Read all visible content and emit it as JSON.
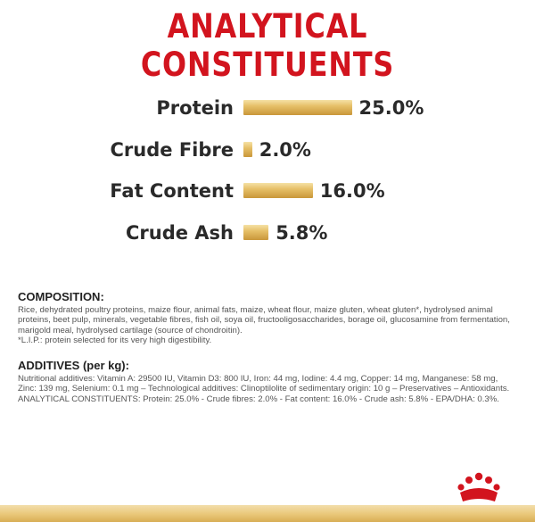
{
  "title": "ANALYTICAL CONSTITUENTS",
  "chart_data": {
    "type": "bar",
    "title": "ANALYTICAL CONSTITUENTS",
    "categories": [
      "Protein",
      "Crude Fibre",
      "Fat Content",
      "Crude Ash"
    ],
    "values": [
      25.0,
      2.0,
      16.0,
      5.8
    ],
    "value_labels": [
      "25.0%",
      "2.0%",
      "16.0%",
      "5.8%"
    ],
    "unit": "%",
    "colors": {
      "bar_light": "#f5e2a6",
      "bar_mid": "#e6c068",
      "bar_dark": "#c9973a",
      "title": "#d2141e"
    }
  },
  "composition": {
    "heading": "COMPOSITION:",
    "text": "Rice, dehydrated poultry proteins, maize flour, animal fats, maize, wheat flour, maize gluten, wheat gluten*, hydrolysed animal proteins, beet pulp, minerals, vegetable fibres, fish oil, soya oil, fructooligosaccharides, borage oil, glucosamine from fermentation, marigold meal, hydrolysed cartilage (source of chondroitin).",
    "footnote": "*L.I.P.: protein selected for its very high digestibility."
  },
  "additives": {
    "heading": "ADDITIVES (per kg):",
    "text": "Nutritional additives: Vitamin A: 29500 IU, Vitamin D3: 800 IU, Iron: 44 mg, Iodine: 4.4 mg, Copper: 14 mg, Manganese: 58 mg, Zinc: 139 mg, Selenium: 0.1 mg – Technological additives: Clinoptilolite of sedimentary origin: 10 g – Preservatives – Antioxidants. ANALYTICAL CONSTITUENTS: Protein: 25.0% - Crude fibres: 2.0% - Fat content: 16.0% - Crude ash: 5.8% - EPA/DHA: 0.3%."
  },
  "logo": {
    "icon": "crown-icon"
  }
}
